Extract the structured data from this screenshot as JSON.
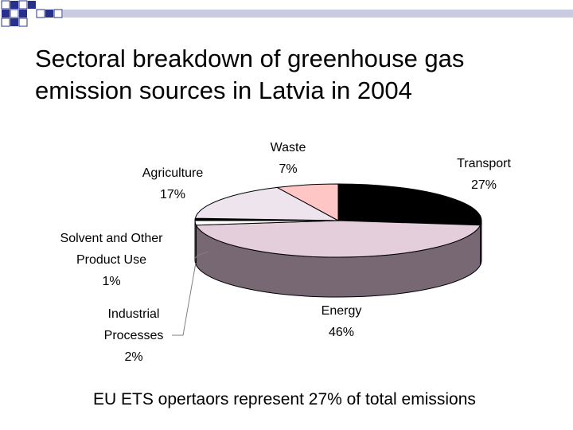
{
  "slide": {
    "title_line1": "Sectoral breakdown of greenhouse gas",
    "title_line2": "emission sources in Latvia in 2004",
    "footer": "EU ETS opertaors represent 27% of total emissions"
  },
  "chart_data": {
    "type": "pie",
    "title": "Sectoral breakdown of greenhouse gas emission sources in Latvia in 2004",
    "unit": "%",
    "slices": [
      {
        "name": "Transport",
        "value": 27,
        "label": "27%",
        "color": "#000000"
      },
      {
        "name": "Energy",
        "value": 46,
        "label": "46%",
        "color": "#e5cedc"
      },
      {
        "name": "Industrial Processes",
        "value": 2,
        "label": "2%",
        "color": "#ffffff"
      },
      {
        "name": "Solvent and Other Product Use",
        "value": 1,
        "label": "1%",
        "color": "#000000"
      },
      {
        "name": "Agriculture",
        "value": 17,
        "label": "17%",
        "color": "#eee4ee"
      },
      {
        "name": "Waste",
        "value": 7,
        "label": "7%",
        "color": "#ffc6c6"
      }
    ],
    "side_color": "#776873",
    "legend": "none"
  }
}
